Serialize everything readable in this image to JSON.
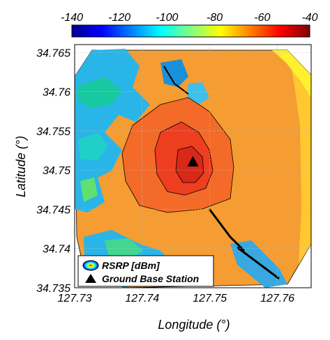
{
  "chart_data": {
    "type": "heatmap",
    "title": "",
    "xlabel": "Longitude (°)",
    "ylabel": "Latitude (°)",
    "xlim": [
      127.73,
      127.765
    ],
    "ylim": [
      34.735,
      34.766
    ],
    "x_ticks": [
      "127.73",
      "127.74",
      "127.75",
      "127.76"
    ],
    "y_ticks": [
      "34.735",
      "34.74",
      "34.745",
      "34.75",
      "34.755",
      "34.76",
      "34.765"
    ],
    "colorbar": {
      "label": "RSRP [dBm]",
      "range": [
        -140,
        -40
      ],
      "ticks": [
        "-140",
        "-120",
        "-100",
        "-80",
        "-60",
        "-40"
      ],
      "colormap": "jet"
    },
    "grid": true,
    "legend": {
      "placement": "bottom-left",
      "entries": [
        {
          "label": "RSRP [dBm]",
          "marker": "colormap-ellipse"
        },
        {
          "label": "Ground Base Station",
          "marker": "black-triangle"
        }
      ]
    },
    "base_station": {
      "longitude": 127.7475,
      "latitude": 34.751
    }
  }
}
